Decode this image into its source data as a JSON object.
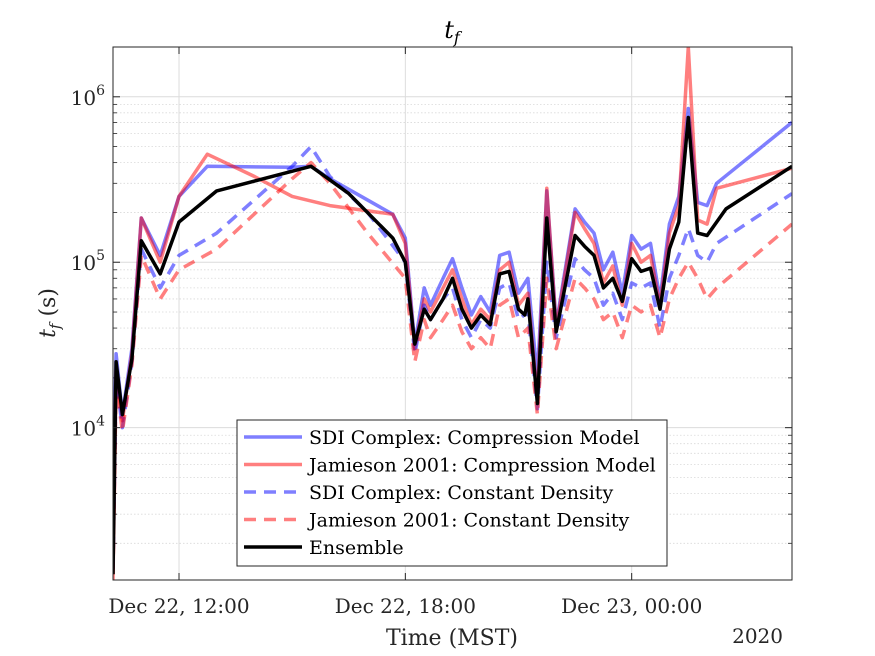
{
  "chart_data": {
    "type": "line",
    "title": "t",
    "title_sub": "f",
    "xlabel": "Time (MST)",
    "ylabel": "t",
    "ylabel_sub": "f",
    "ylabel_unit": " (s)",
    "y_scale": "log",
    "ylim": [
      1200,
      2000000
    ],
    "xlim": [
      "2020-12-22 10:15",
      "2020-12-23 04:15"
    ],
    "year_label": "2020",
    "grid": true,
    "legend_position": "bottom-center",
    "y_ticks": [
      {
        "value": 10000,
        "base": "10",
        "exp": "4"
      },
      {
        "value": 100000,
        "base": "10",
        "exp": "5"
      },
      {
        "value": 1000000,
        "base": "10",
        "exp": "6"
      }
    ],
    "x_ticks": [
      {
        "value": "2020-12-22 12:00",
        "label": "Dec 22, 12:00"
      },
      {
        "value": "2020-12-22 18:00",
        "label": "Dec 22, 18:00"
      },
      {
        "value": "2020-12-23 00:00",
        "label": "Dec 23, 00:00"
      }
    ],
    "series": [
      {
        "name": "SDI Complex: Compression Model",
        "color": "#0000ff",
        "dash": false,
        "points": [
          [
            "2020-12-22 10:15",
            5000
          ],
          [
            "2020-12-22 10:20",
            28000
          ],
          [
            "2020-12-22 10:30",
            12000
          ],
          [
            "2020-12-22 10:45",
            30000
          ],
          [
            "2020-12-22 11:00",
            185000
          ],
          [
            "2020-12-22 11:30",
            110000
          ],
          [
            "2020-12-22 12:00",
            250000
          ],
          [
            "2020-12-22 12:45",
            380000
          ],
          [
            "2020-12-22 15:00",
            375000
          ],
          [
            "2020-12-22 15:30",
            380000
          ],
          [
            "2020-12-22 16:00",
            320000
          ],
          [
            "2020-12-22 17:40",
            195000
          ],
          [
            "2020-12-22 18:00",
            140000
          ],
          [
            "2020-12-22 18:15",
            32000
          ],
          [
            "2020-12-22 18:30",
            70000
          ],
          [
            "2020-12-22 18:40",
            55000
          ],
          [
            "2020-12-22 19:00",
            80000
          ],
          [
            "2020-12-22 19:15",
            105000
          ],
          [
            "2020-12-22 19:30",
            70000
          ],
          [
            "2020-12-22 19:45",
            48000
          ],
          [
            "2020-12-22 20:00",
            62000
          ],
          [
            "2020-12-22 20:15",
            50000
          ],
          [
            "2020-12-22 20:30",
            110000
          ],
          [
            "2020-12-22 20:45",
            115000
          ],
          [
            "2020-12-22 21:00",
            65000
          ],
          [
            "2020-12-22 21:15",
            80000
          ],
          [
            "2020-12-22 21:30",
            20000
          ],
          [
            "2020-12-22 21:45",
            270000
          ],
          [
            "2020-12-22 22:00",
            42000
          ],
          [
            "2020-12-22 22:30",
            210000
          ],
          [
            "2020-12-22 22:45",
            175000
          ],
          [
            "2020-12-22 23:00",
            150000
          ],
          [
            "2020-12-22 23:15",
            90000
          ],
          [
            "2020-12-22 23:30",
            115000
          ],
          [
            "2020-12-22 23:45",
            65000
          ],
          [
            "2020-12-23 00:00",
            145000
          ],
          [
            "2020-12-23 00:15",
            120000
          ],
          [
            "2020-12-23 00:30",
            130000
          ],
          [
            "2020-12-23 00:45",
            60000
          ],
          [
            "2020-12-23 01:00",
            170000
          ],
          [
            "2020-12-23 01:15",
            250000
          ],
          [
            "2020-12-23 01:30",
            850000
          ],
          [
            "2020-12-23 01:45",
            230000
          ],
          [
            "2020-12-23 02:00",
            220000
          ],
          [
            "2020-12-23 02:15",
            300000
          ],
          [
            "2020-12-23 04:15",
            700000
          ]
        ]
      },
      {
        "name": "Jamieson 2001: Compression Model",
        "color": "#ff0000",
        "dash": false,
        "points": [
          [
            "2020-12-22 10:15",
            1200
          ],
          [
            "2020-12-22 10:20",
            22000
          ],
          [
            "2020-12-22 10:30",
            11000
          ],
          [
            "2020-12-22 10:45",
            28000
          ],
          [
            "2020-12-22 11:00",
            185000
          ],
          [
            "2020-12-22 11:30",
            100000
          ],
          [
            "2020-12-22 12:00",
            250000
          ],
          [
            "2020-12-22 12:45",
            450000
          ],
          [
            "2020-12-22 14:00",
            330000
          ],
          [
            "2020-12-22 15:00",
            250000
          ],
          [
            "2020-12-22 16:00",
            220000
          ],
          [
            "2020-12-22 17:40",
            195000
          ],
          [
            "2020-12-22 18:00",
            130000
          ],
          [
            "2020-12-22 18:15",
            30000
          ],
          [
            "2020-12-22 18:30",
            60000
          ],
          [
            "2020-12-22 18:40",
            50000
          ],
          [
            "2020-12-22 19:00",
            70000
          ],
          [
            "2020-12-22 19:15",
            90000
          ],
          [
            "2020-12-22 19:30",
            60000
          ],
          [
            "2020-12-22 19:45",
            42000
          ],
          [
            "2020-12-22 20:00",
            52000
          ],
          [
            "2020-12-22 20:15",
            45000
          ],
          [
            "2020-12-22 20:30",
            90000
          ],
          [
            "2020-12-22 20:45",
            100000
          ],
          [
            "2020-12-22 21:00",
            55000
          ],
          [
            "2020-12-22 21:15",
            65000
          ],
          [
            "2020-12-22 21:30",
            15000
          ],
          [
            "2020-12-22 21:45",
            280000
          ],
          [
            "2020-12-22 22:00",
            40000
          ],
          [
            "2020-12-22 22:30",
            200000
          ],
          [
            "2020-12-22 22:45",
            160000
          ],
          [
            "2020-12-22 23:00",
            130000
          ],
          [
            "2020-12-22 23:15",
            75000
          ],
          [
            "2020-12-22 23:30",
            95000
          ],
          [
            "2020-12-22 23:45",
            55000
          ],
          [
            "2020-12-23 00:00",
            130000
          ],
          [
            "2020-12-23 00:15",
            100000
          ],
          [
            "2020-12-23 00:30",
            110000
          ],
          [
            "2020-12-23 00:45",
            55000
          ],
          [
            "2020-12-23 01:00",
            150000
          ],
          [
            "2020-12-23 01:15",
            220000
          ],
          [
            "2020-12-23 01:30",
            2000000
          ],
          [
            "2020-12-23 01:45",
            180000
          ],
          [
            "2020-12-23 02:00",
            170000
          ],
          [
            "2020-12-23 02:15",
            280000
          ],
          [
            "2020-12-23 04:15",
            370000
          ]
        ]
      },
      {
        "name": "SDI Complex: Constant Density",
        "color": "#0000ff",
        "dash": true,
        "points": [
          [
            "2020-12-22 10:15",
            1400
          ],
          [
            "2020-12-22 10:20",
            20000
          ],
          [
            "2020-12-22 10:30",
            10000
          ],
          [
            "2020-12-22 10:45",
            25000
          ],
          [
            "2020-12-22 11:00",
            120000
          ],
          [
            "2020-12-22 11:30",
            70000
          ],
          [
            "2020-12-22 12:00",
            110000
          ],
          [
            "2020-12-22 13:00",
            150000
          ],
          [
            "2020-12-22 15:00",
            380000
          ],
          [
            "2020-12-22 15:30",
            500000
          ],
          [
            "2020-12-22 16:00",
            330000
          ],
          [
            "2020-12-22 17:00",
            200000
          ],
          [
            "2020-12-22 18:00",
            100000
          ],
          [
            "2020-12-22 18:15",
            28000
          ],
          [
            "2020-12-22 18:30",
            55000
          ],
          [
            "2020-12-22 18:40",
            45000
          ],
          [
            "2020-12-22 19:00",
            60000
          ],
          [
            "2020-12-22 19:15",
            70000
          ],
          [
            "2020-12-22 19:30",
            45000
          ],
          [
            "2020-12-22 19:45",
            35000
          ],
          [
            "2020-12-22 20:00",
            45000
          ],
          [
            "2020-12-22 20:15",
            40000
          ],
          [
            "2020-12-22 20:30",
            70000
          ],
          [
            "2020-12-22 20:45",
            75000
          ],
          [
            "2020-12-22 21:00",
            45000
          ],
          [
            "2020-12-22 21:15",
            50000
          ],
          [
            "2020-12-22 21:30",
            13000
          ],
          [
            "2020-12-22 21:45",
            100000
          ],
          [
            "2020-12-22 22:00",
            35000
          ],
          [
            "2020-12-22 22:30",
            105000
          ],
          [
            "2020-12-22 22:45",
            90000
          ],
          [
            "2020-12-22 23:00",
            80000
          ],
          [
            "2020-12-22 23:15",
            55000
          ],
          [
            "2020-12-22 23:30",
            65000
          ],
          [
            "2020-12-22 23:45",
            45000
          ],
          [
            "2020-12-23 00:00",
            75000
          ],
          [
            "2020-12-23 00:15",
            70000
          ],
          [
            "2020-12-23 00:30",
            75000
          ],
          [
            "2020-12-23 00:45",
            40000
          ],
          [
            "2020-12-23 01:00",
            80000
          ],
          [
            "2020-12-23 01:15",
            110000
          ],
          [
            "2020-12-23 01:30",
            160000
          ],
          [
            "2020-12-23 01:45",
            110000
          ],
          [
            "2020-12-23 02:00",
            100000
          ],
          [
            "2020-12-23 02:15",
            130000
          ],
          [
            "2020-12-23 04:15",
            260000
          ]
        ]
      },
      {
        "name": "Jamieson 2001: Constant Density",
        "color": "#ff0000",
        "dash": true,
        "points": [
          [
            "2020-12-22 10:15",
            1300
          ],
          [
            "2020-12-22 10:20",
            18000
          ],
          [
            "2020-12-22 10:30",
            9500
          ],
          [
            "2020-12-22 10:45",
            24000
          ],
          [
            "2020-12-22 11:00",
            110000
          ],
          [
            "2020-12-22 11:30",
            60000
          ],
          [
            "2020-12-22 12:00",
            90000
          ],
          [
            "2020-12-22 13:00",
            120000
          ],
          [
            "2020-12-22 15:00",
            320000
          ],
          [
            "2020-12-22 15:30",
            400000
          ],
          [
            "2020-12-22 16:00",
            300000
          ],
          [
            "2020-12-22 17:00",
            150000
          ],
          [
            "2020-12-22 18:00",
            80000
          ],
          [
            "2020-12-22 18:15",
            25000
          ],
          [
            "2020-12-22 18:30",
            45000
          ],
          [
            "2020-12-22 18:40",
            35000
          ],
          [
            "2020-12-22 19:00",
            45000
          ],
          [
            "2020-12-22 19:15",
            55000
          ],
          [
            "2020-12-22 19:30",
            38000
          ],
          [
            "2020-12-22 19:45",
            30000
          ],
          [
            "2020-12-22 20:00",
            35000
          ],
          [
            "2020-12-22 20:15",
            30000
          ],
          [
            "2020-12-22 20:30",
            55000
          ],
          [
            "2020-12-22 20:45",
            60000
          ],
          [
            "2020-12-22 21:00",
            35000
          ],
          [
            "2020-12-22 21:15",
            40000
          ],
          [
            "2020-12-22 21:30",
            12000
          ],
          [
            "2020-12-22 21:45",
            80000
          ],
          [
            "2020-12-22 22:00",
            30000
          ],
          [
            "2020-12-22 22:30",
            80000
          ],
          [
            "2020-12-22 22:45",
            70000
          ],
          [
            "2020-12-22 23:00",
            60000
          ],
          [
            "2020-12-22 23:15",
            45000
          ],
          [
            "2020-12-22 23:30",
            50000
          ],
          [
            "2020-12-22 23:45",
            35000
          ],
          [
            "2020-12-23 00:00",
            55000
          ],
          [
            "2020-12-23 00:15",
            50000
          ],
          [
            "2020-12-23 00:30",
            55000
          ],
          [
            "2020-12-23 00:45",
            35000
          ],
          [
            "2020-12-23 01:00",
            60000
          ],
          [
            "2020-12-23 01:15",
            80000
          ],
          [
            "2020-12-23 01:30",
            100000
          ],
          [
            "2020-12-23 01:45",
            80000
          ],
          [
            "2020-12-23 02:00",
            60000
          ],
          [
            "2020-12-23 02:15",
            70000
          ],
          [
            "2020-12-23 04:15",
            170000
          ]
        ]
      },
      {
        "name": "Ensemble",
        "color": "#000000",
        "dash": false,
        "points": [
          [
            "2020-12-22 10:15",
            1300
          ],
          [
            "2020-12-22 10:20",
            25000
          ],
          [
            "2020-12-22 10:30",
            12000
          ],
          [
            "2020-12-22 10:45",
            26000
          ],
          [
            "2020-12-22 11:00",
            135000
          ],
          [
            "2020-12-22 11:30",
            85000
          ],
          [
            "2020-12-22 12:00",
            175000
          ],
          [
            "2020-12-22 13:00",
            270000
          ],
          [
            "2020-12-22 15:30",
            380000
          ],
          [
            "2020-12-22 16:30",
            260000
          ],
          [
            "2020-12-22 17:40",
            140000
          ],
          [
            "2020-12-22 18:00",
            100000
          ],
          [
            "2020-12-22 18:15",
            32000
          ],
          [
            "2020-12-22 18:30",
            52000
          ],
          [
            "2020-12-22 18:40",
            45000
          ],
          [
            "2020-12-22 19:00",
            60000
          ],
          [
            "2020-12-22 19:15",
            80000
          ],
          [
            "2020-12-22 19:30",
            52000
          ],
          [
            "2020-12-22 19:45",
            40000
          ],
          [
            "2020-12-22 20:00",
            48000
          ],
          [
            "2020-12-22 20:15",
            42000
          ],
          [
            "2020-12-22 20:30",
            85000
          ],
          [
            "2020-12-22 20:45",
            88000
          ],
          [
            "2020-12-22 21:00",
            52000
          ],
          [
            "2020-12-22 21:10",
            48000
          ],
          [
            "2020-12-22 21:15",
            60000
          ],
          [
            "2020-12-22 21:30",
            14000
          ],
          [
            "2020-12-22 21:45",
            185000
          ],
          [
            "2020-12-22 22:00",
            38000
          ],
          [
            "2020-12-22 22:30",
            145000
          ],
          [
            "2020-12-22 22:45",
            125000
          ],
          [
            "2020-12-22 23:00",
            110000
          ],
          [
            "2020-12-22 23:15",
            70000
          ],
          [
            "2020-12-22 23:30",
            80000
          ],
          [
            "2020-12-22 23:45",
            58000
          ],
          [
            "2020-12-23 00:00",
            105000
          ],
          [
            "2020-12-23 00:15",
            88000
          ],
          [
            "2020-12-23 00:30",
            92000
          ],
          [
            "2020-12-23 00:45",
            52000
          ],
          [
            "2020-12-23 01:00",
            120000
          ],
          [
            "2020-12-23 01:15",
            175000
          ],
          [
            "2020-12-23 01:30",
            750000
          ],
          [
            "2020-12-23 01:45",
            150000
          ],
          [
            "2020-12-23 02:00",
            145000
          ],
          [
            "2020-12-23 02:30",
            210000
          ],
          [
            "2020-12-23 04:15",
            380000
          ]
        ]
      }
    ]
  }
}
